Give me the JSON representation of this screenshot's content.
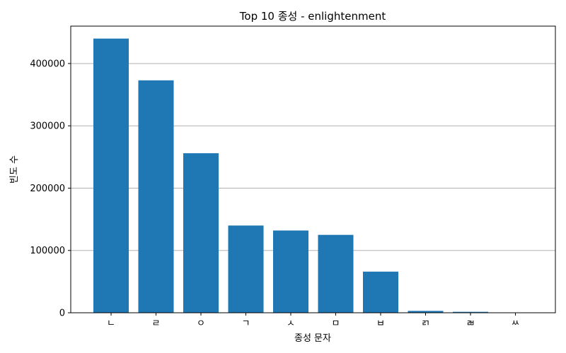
{
  "chart_data": {
    "type": "bar",
    "title": "Top 10 종성 - enlightenment",
    "xlabel": "종성 문자",
    "ylabel": "빈도 수",
    "categories": [
      "ㄴ",
      "ㄹ",
      "ㅇ",
      "ㄱ",
      "ㅅ",
      "ㅁ",
      "ㅂ",
      "ㄺ",
      "ㄼ",
      "ㅆ"
    ],
    "values": [
      440000,
      373000,
      256000,
      140000,
      132000,
      125000,
      66000,
      3000,
      1500,
      500
    ],
    "ylim": [
      0,
      460000
    ],
    "yticks": [
      0,
      100000,
      200000,
      300000,
      400000
    ],
    "ytick_labels": [
      "0",
      "100000",
      "200000",
      "300000",
      "400000"
    ],
    "grid": "y",
    "bar_color": "#1f77b4",
    "grid_color": "#b0b0b0"
  }
}
